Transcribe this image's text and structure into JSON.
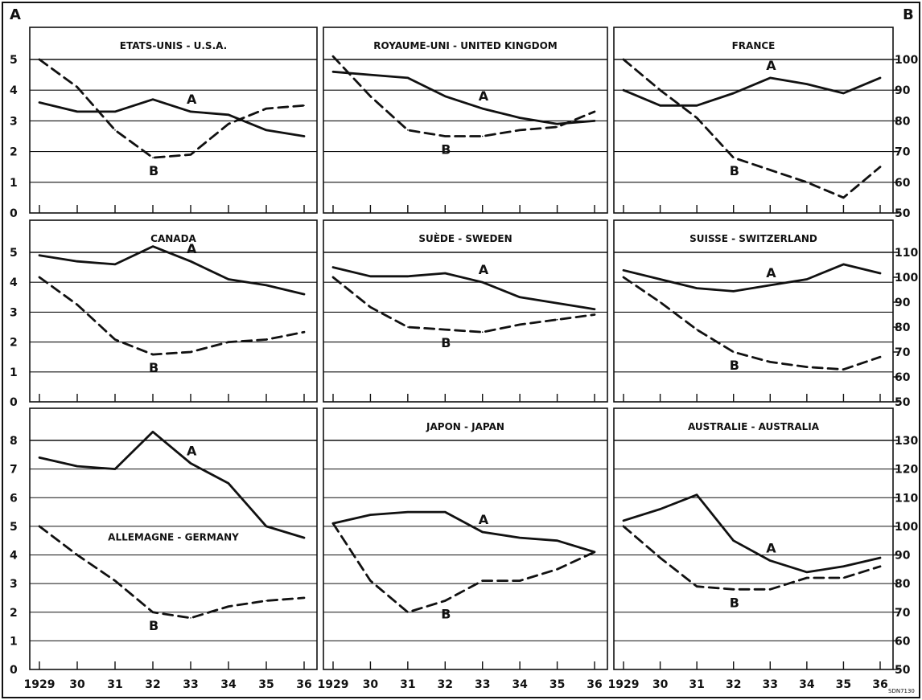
{
  "axis_labels": {
    "left": "A",
    "right": "B"
  },
  "code": "SDN7130",
  "x_tick_labels": [
    "1929",
    "30",
    "31",
    "32",
    "33",
    "34",
    "35",
    "36"
  ],
  "rows": [
    {
      "left_ticks": [
        "0",
        "1",
        "2",
        "3",
        "4",
        "5"
      ],
      "right_ticks": [
        "50",
        "60",
        "70",
        "80",
        "90",
        "100"
      ]
    },
    {
      "left_ticks": [
        "0",
        "1",
        "2",
        "3",
        "4",
        "5"
      ],
      "right_ticks": [
        "50",
        "60",
        "70",
        "80",
        "90",
        "100",
        "110"
      ]
    },
    {
      "left_ticks": [
        "0",
        "1",
        "2",
        "3",
        "4",
        "5",
        "6",
        "7",
        "8"
      ],
      "right_ticks": [
        "50",
        "60",
        "70",
        "80",
        "90",
        "100",
        "110",
        "120",
        "130"
      ]
    }
  ],
  "chart_data": [
    {
      "type": "line",
      "title": "ETATS-UNIS - U.S.A.",
      "x": [
        1929,
        1930,
        1931,
        1932,
        1933,
        1934,
        1935,
        1936
      ],
      "ylim": [
        0,
        5
      ],
      "y2lim": [
        50,
        100
      ],
      "series": [
        {
          "name": "A",
          "axis": "left",
          "values": [
            3.6,
            3.3,
            3.3,
            3.7,
            3.3,
            3.2,
            2.7,
            2.5
          ]
        },
        {
          "name": "B",
          "axis": "right",
          "values": [
            100,
            91,
            77,
            68,
            69,
            79,
            84,
            85
          ]
        }
      ]
    },
    {
      "type": "line",
      "title": "ROYAUME-UNI - UNITED KINGDOM",
      "x": [
        1929,
        1930,
        1931,
        1932,
        1933,
        1934,
        1935,
        1936
      ],
      "ylim": [
        0,
        5
      ],
      "y2lim": [
        50,
        100
      ],
      "series": [
        {
          "name": "A",
          "axis": "left",
          "values": [
            4.6,
            4.5,
            4.4,
            3.8,
            3.4,
            3.1,
            2.9,
            3.0
          ]
        },
        {
          "name": "B",
          "axis": "right",
          "values": [
            101,
            88,
            77,
            75,
            75,
            77,
            78,
            83
          ]
        }
      ]
    },
    {
      "type": "line",
      "title": "FRANCE",
      "x": [
        1929,
        1930,
        1931,
        1932,
        1933,
        1934,
        1935,
        1936
      ],
      "ylim": [
        0,
        5
      ],
      "y2lim": [
        50,
        100
      ],
      "series": [
        {
          "name": "A",
          "axis": "left",
          "values": [
            4.0,
            3.5,
            3.5,
            3.9,
            4.4,
            4.2,
            3.9,
            4.4
          ]
        },
        {
          "name": "B",
          "axis": "right",
          "values": [
            100,
            90,
            81,
            68,
            64,
            60,
            55,
            65
          ]
        }
      ]
    },
    {
      "type": "line",
      "title": "CANADA",
      "x": [
        1929,
        1930,
        1931,
        1932,
        1933,
        1934,
        1935,
        1936
      ],
      "ylim": [
        0,
        5
      ],
      "y2lim": [
        50,
        110
      ],
      "series": [
        {
          "name": "A",
          "axis": "left",
          "values": [
            4.9,
            4.7,
            4.6,
            5.2,
            4.7,
            4.1,
            3.9,
            3.6
          ]
        },
        {
          "name": "B",
          "axis": "right",
          "values": [
            100,
            89,
            75,
            69,
            70,
            74,
            75,
            78
          ]
        }
      ]
    },
    {
      "type": "line",
      "title": "SUÈDE - SWEDEN",
      "x": [
        1929,
        1930,
        1931,
        1932,
        1933,
        1934,
        1935,
        1936
      ],
      "ylim": [
        0,
        5
      ],
      "y2lim": [
        50,
        110
      ],
      "series": [
        {
          "name": "A",
          "axis": "left",
          "values": [
            4.5,
            4.2,
            4.2,
            4.3,
            4.0,
            3.5,
            3.3,
            3.1
          ]
        },
        {
          "name": "B",
          "axis": "right",
          "values": [
            100,
            88,
            80,
            79,
            78,
            81,
            83,
            85
          ]
        }
      ]
    },
    {
      "type": "line",
      "title": "SUISSE - SWITZERLAND",
      "x": [
        1929,
        1930,
        1931,
        1932,
        1933,
        1934,
        1935,
        1936
      ],
      "ylim": [
        0,
        5
      ],
      "y2lim": [
        50,
        110
      ],
      "series": [
        {
          "name": "A",
          "axis": "left",
          "values": [
            4.4,
            4.1,
            3.8,
            3.7,
            3.9,
            4.1,
            4.6,
            4.3
          ]
        },
        {
          "name": "B",
          "axis": "right",
          "values": [
            100,
            90,
            79,
            70,
            66,
            64,
            63,
            68
          ]
        }
      ]
    },
    {
      "type": "line",
      "title": "ALLEMAGNE - GERMANY",
      "x": [
        1929,
        1930,
        1931,
        1932,
        1933,
        1934,
        1935,
        1936
      ],
      "ylim": [
        0,
        8
      ],
      "y2lim": [
        50,
        130
      ],
      "series": [
        {
          "name": "A",
          "axis": "left",
          "values": [
            7.4,
            7.1,
            7.0,
            8.3,
            7.2,
            6.5,
            5.0,
            4.6
          ]
        },
        {
          "name": "B",
          "axis": "right",
          "values": [
            100,
            90,
            81,
            70,
            68,
            72,
            74,
            75
          ]
        }
      ]
    },
    {
      "type": "line",
      "title": "JAPON - JAPAN",
      "x": [
        1929,
        1930,
        1931,
        1932,
        1933,
        1934,
        1935,
        1936
      ],
      "ylim": [
        0,
        8
      ],
      "y2lim": [
        50,
        130
      ],
      "series": [
        {
          "name": "A",
          "axis": "left",
          "values": [
            5.1,
            5.4,
            5.5,
            5.5,
            4.8,
            4.6,
            4.5,
            4.1
          ]
        },
        {
          "name": "B",
          "axis": "right",
          "values": [
            101,
            81,
            70,
            74,
            81,
            81,
            85,
            91
          ]
        }
      ]
    },
    {
      "type": "line",
      "title": "AUSTRALIE - AUSTRALIA",
      "x": [
        1929,
        1930,
        1931,
        1932,
        1933,
        1934,
        1935,
        1936
      ],
      "ylim": [
        0,
        8
      ],
      "y2lim": [
        50,
        130
      ],
      "series": [
        {
          "name": "A",
          "axis": "left",
          "values": [
            5.2,
            5.6,
            6.1,
            4.5,
            3.8,
            3.4,
            3.6,
            3.9
          ]
        },
        {
          "name": "B",
          "axis": "right",
          "values": [
            100,
            89,
            79,
            78,
            78,
            82,
            82,
            86
          ]
        }
      ]
    }
  ]
}
